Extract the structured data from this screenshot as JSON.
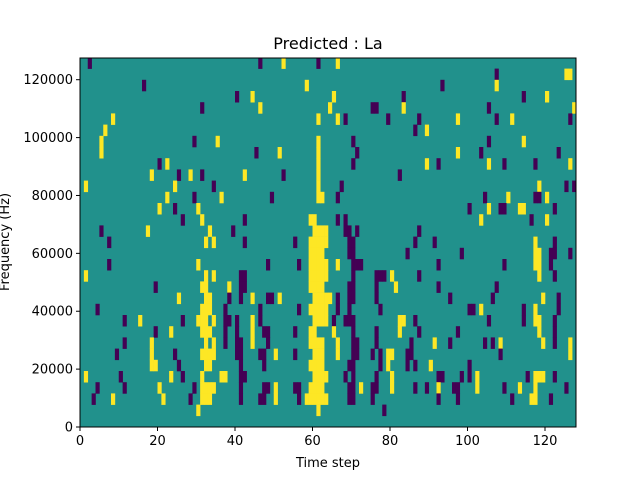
{
  "chart_data": {
    "type": "heatmap",
    "title": "Predicted : La",
    "xlabel": "Time step",
    "ylabel": "Frequency (Hz)",
    "xlim": [
      0,
      128
    ],
    "ylim": [
      0,
      127500
    ],
    "n_time": 128,
    "n_freq": 33,
    "xticks": [
      0,
      20,
      40,
      60,
      80,
      100,
      120
    ],
    "xtick_labels": [
      "0",
      "20",
      "40",
      "60",
      "80",
      "100",
      "120"
    ],
    "yticks": [
      0,
      20000,
      40000,
      60000,
      80000,
      100000,
      120000
    ],
    "ytick_labels": [
      "0",
      "20000",
      "40000",
      "60000",
      "80000",
      "100000",
      "120000"
    ],
    "colors": {
      "low": "#440154",
      "mid": "#21918c",
      "high": "#fde725"
    },
    "background_value": "mid",
    "rows_top_down_note": "row index 0 = highest frequency bin; p = low-value time steps, y = high-value time steps",
    "rows": [
      {
        "p": [
          2,
          46,
          61
        ],
        "y": [
          52,
          66
        ]
      },
      {
        "p": [
          107
        ],
        "y": [
          125,
          126
        ]
      },
      {
        "p": [
          16,
          93
        ],
        "y": [
          58,
          107
        ]
      },
      {
        "p": [
          40,
          83,
          114
        ],
        "y": [
          44,
          65,
          120
        ]
      },
      {
        "p": [
          31,
          75,
          76,
          105
        ],
        "y": [
          46,
          64,
          83,
          127
        ]
      },
      {
        "p": [
          68,
          79,
          87,
          107,
          126
        ],
        "y": [
          8,
          61,
          66,
          97,
          111
        ]
      },
      {
        "p": [
          86
        ],
        "y": [
          6,
          89
        ]
      },
      {
        "p": [
          29,
          70,
          105
        ],
        "y": [
          5,
          35,
          61,
          114
        ]
      },
      {
        "p": [
          45,
          71,
          103,
          123
        ],
        "y": [
          5,
          51,
          61,
          97
        ]
      },
      {
        "p": [
          20,
          70,
          92,
          109,
          117
        ],
        "y": [
          22,
          61,
          89,
          105,
          126
        ]
      },
      {
        "p": [
          25,
          31,
          52,
          82
        ],
        "y": [
          18,
          28,
          42,
          61
        ]
      },
      {
        "p": [
          34,
          67,
          125,
          127
        ],
        "y": [
          1,
          24,
          61,
          118
        ]
      },
      {
        "p": [
          29,
          49,
          66,
          104,
          117,
          118
        ],
        "y": [
          22,
          36,
          61,
          62,
          110,
          120
        ]
      },
      {
        "p": [
          24,
          100,
          108,
          109,
          122
        ],
        "y": [
          20,
          30,
          105,
          113,
          114
        ]
      },
      {
        "p": [
          26,
          42,
          66,
          68,
          116
        ],
        "y": [
          31,
          59,
          60,
          103,
          120
        ]
      },
      {
        "p": [
          5,
          39,
          68,
          69,
          71,
          87
        ],
        "y": [
          17,
          33,
          60,
          61,
          62,
          63
        ]
      },
      {
        "p": [
          7,
          42,
          55,
          69,
          70,
          86,
          91,
          122
        ],
        "y": [
          32,
          34,
          59,
          60,
          61,
          62,
          63,
          117
        ]
      },
      {
        "p": [
          69,
          70,
          84,
          98,
          121,
          122,
          126
        ],
        "y": [
          59,
          60,
          61,
          62,
          117,
          118
        ]
      },
      {
        "p": [
          7,
          48,
          56,
          70,
          71,
          72,
          92,
          109,
          121
        ],
        "y": [
          30,
          59,
          60,
          61,
          62,
          63,
          66,
          117,
          118
        ]
      },
      {
        "p": [
          41,
          42,
          70,
          76,
          77,
          78,
          87,
          122
        ],
        "y": [
          1,
          32,
          34,
          59,
          60,
          61,
          62,
          63,
          80,
          118
        ]
      },
      {
        "p": [
          19,
          41,
          42,
          69,
          70,
          76,
          92,
          107
        ],
        "y": [
          31,
          32,
          38,
          59,
          60,
          61,
          62,
          81
        ]
      },
      {
        "p": [
          38,
          41,
          48,
          49,
          66,
          69,
          70,
          76,
          95,
          106,
          123
        ],
        "y": [
          25,
          32,
          33,
          44,
          51,
          60,
          61,
          62,
          63,
          64,
          119
        ]
      },
      {
        "p": [
          4,
          37,
          46,
          56,
          66,
          69,
          77,
          100,
          101,
          114,
          123
        ],
        "y": [
          31,
          32,
          33,
          59,
          60,
          61,
          62,
          63,
          103,
          117
        ]
      },
      {
        "p": [
          11,
          26,
          37,
          38,
          40,
          46,
          65,
          68,
          69,
          70,
          86,
          105,
          114,
          122
        ],
        "y": [
          15,
          30,
          31,
          32,
          34,
          44,
          60,
          61,
          62,
          63,
          82,
          83,
          117,
          118
        ]
      },
      {
        "p": [
          19,
          37,
          40,
          47,
          48,
          55,
          70,
          76,
          87,
          97,
          122
        ],
        "y": [
          23,
          31,
          32,
          33,
          44,
          59,
          60,
          65,
          82,
          118
        ]
      },
      {
        "p": [
          11,
          37,
          40,
          41,
          48,
          70,
          71,
          76,
          85,
          95,
          104,
          106,
          122
        ],
        "y": [
          18,
          32,
          34,
          44,
          59,
          60,
          61,
          62,
          66,
          91,
          108,
          119,
          126
        ]
      },
      {
        "p": [
          9,
          24,
          40,
          41,
          46,
          47,
          55,
          70,
          71,
          75,
          77,
          84,
          85,
          108
        ],
        "y": [
          18,
          31,
          32,
          33,
          34,
          50,
          60,
          61,
          62,
          66,
          79,
          80,
          126
        ]
      },
      {
        "p": [
          25,
          41,
          47,
          69,
          70,
          77,
          84,
          86,
          100
        ],
        "y": [
          18,
          19,
          32,
          33,
          59,
          60,
          61,
          62,
          79,
          90
        ]
      },
      {
        "p": [
          10,
          26,
          41,
          42,
          68,
          70,
          76,
          92,
          93,
          98,
          100,
          115,
          122
        ],
        "y": [
          1,
          23,
          31,
          36,
          37,
          60,
          61,
          62,
          63,
          80,
          102,
          117,
          118,
          119
        ]
      },
      {
        "p": [
          4,
          11,
          29,
          41,
          47,
          48,
          55,
          56,
          69,
          70,
          75,
          76,
          86,
          89,
          96,
          97,
          109,
          125
        ],
        "y": [
          20,
          31,
          32,
          33,
          34,
          50,
          59,
          60,
          61,
          62,
          72,
          80,
          92,
          102,
          113,
          117
        ]
      },
      {
        "p": [
          3,
          28,
          41,
          46,
          47,
          56,
          69,
          70,
          75,
          92,
          97,
          111,
          121
        ],
        "y": [
          8,
          21,
          31,
          32,
          33,
          50,
          58,
          59,
          60,
          61,
          62,
          63,
          116,
          117
        ]
      },
      {
        "p": [
          78
        ],
        "y": [
          30,
          61
        ]
      },
      {
        "p": [],
        "y": []
      }
    ]
  }
}
